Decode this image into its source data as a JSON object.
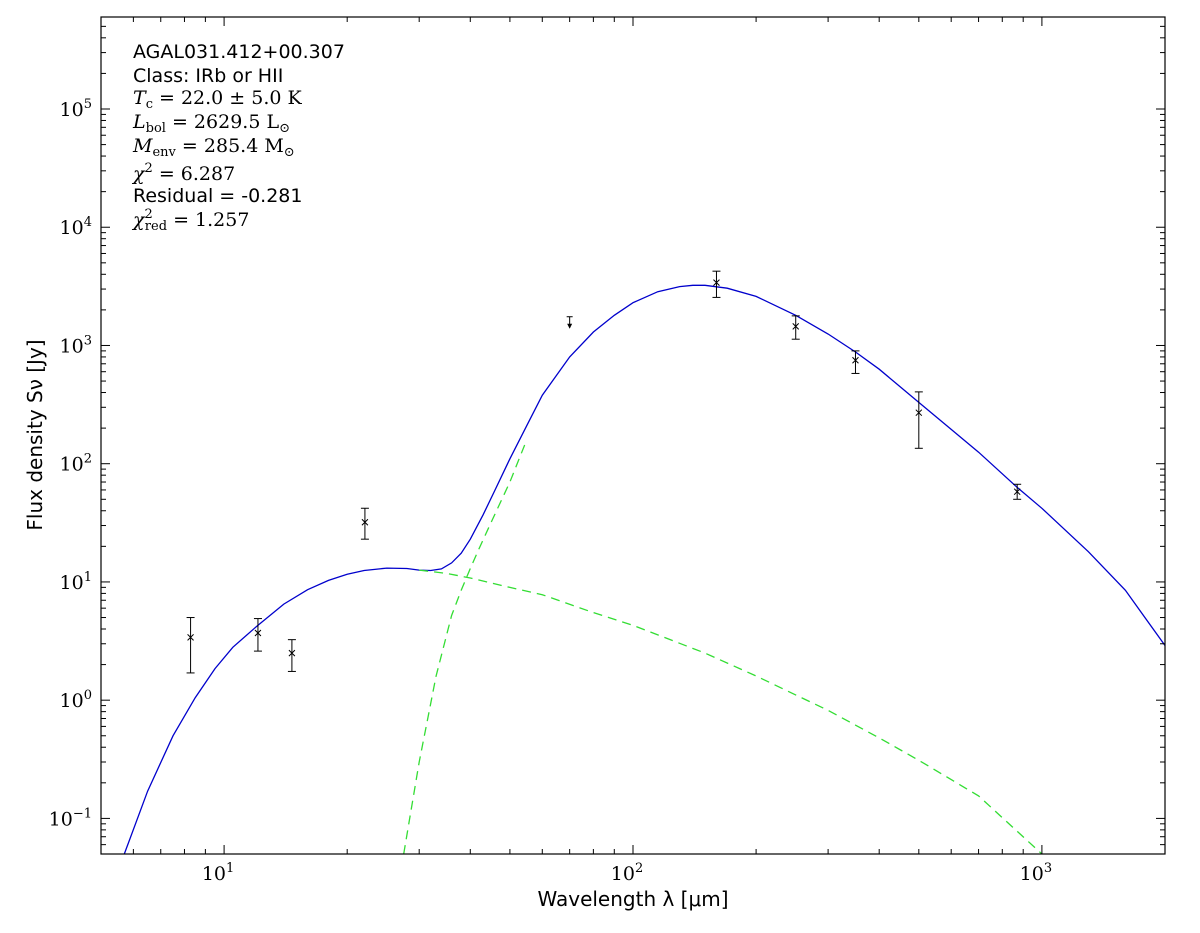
{
  "chart_data": {
    "type": "line",
    "xscale": "log",
    "yscale": "log",
    "xlim": [
      5,
      2000
    ],
    "ylim": [
      0.05,
      600000
    ],
    "xlabel": "Wavelength λ [μm]",
    "ylabel": "Flux density Sν [Jy]",
    "x_tick_labels": [
      {
        "value": 10,
        "base": "10",
        "exp": "1"
      },
      {
        "value": 100,
        "base": "10",
        "exp": "2"
      },
      {
        "value": 1000,
        "base": "10",
        "exp": "3"
      }
    ],
    "y_tick_labels": [
      {
        "value": 0.1,
        "base": "10",
        "exp": "−1"
      },
      {
        "value": 1,
        "base": "10",
        "exp": "0"
      },
      {
        "value": 10,
        "base": "10",
        "exp": "1"
      },
      {
        "value": 100,
        "base": "10",
        "exp": "2"
      },
      {
        "value": 1000,
        "base": "10",
        "exp": "3"
      },
      {
        "value": 10000,
        "base": "10",
        "exp": "4"
      },
      {
        "value": 100000,
        "base": "10",
        "exp": "5"
      }
    ],
    "annotations": {
      "source": "AGAL031.412+00.307",
      "class": "Class: IRb or HII",
      "tc": {
        "sym": "T",
        "sub": "c",
        "text": " = 22.0 ± 5.0 K"
      },
      "lbol": {
        "sym": "L",
        "sub": "bol",
        "text": " = 2629.5 L",
        "suffix_sub": "⊙"
      },
      "menv": {
        "sym": "M",
        "sub": "env",
        "text": " = 285.4 M",
        "suffix_sub": "⊙"
      },
      "chi2": {
        "sym": "χ",
        "sup": "2",
        "text": " = 6.287"
      },
      "residual": "Residual = -0.281",
      "chi2red": {
        "sym": "χ",
        "sup": "2",
        "sub": "red",
        "text": " = 1.257"
      }
    },
    "data_points": [
      {
        "x": 8.28,
        "y": 3.4,
        "err_low": 1.7,
        "err_high": 5.0
      },
      {
        "x": 12.1,
        "y": 3.7,
        "err_low": 2.6,
        "err_high": 4.9
      },
      {
        "x": 14.65,
        "y": 2.5,
        "err_low": 1.75,
        "err_high": 3.25
      },
      {
        "x": 22.1,
        "y": 32,
        "err_low": 23,
        "err_high": 42
      },
      {
        "x": 160,
        "y": 3400,
        "err_low": 2550,
        "err_high": 4250
      },
      {
        "x": 250,
        "y": 1450,
        "err_low": 1130,
        "err_high": 1780
      },
      {
        "x": 350,
        "y": 750,
        "err_low": 580,
        "err_high": 900
      },
      {
        "x": 500,
        "y": 270,
        "err_low": 135,
        "err_high": 405
      },
      {
        "x": 870,
        "y": 58,
        "err_low": 50,
        "err_high": 67
      }
    ],
    "upper_limits": [
      {
        "x": 70,
        "y": 1750
      }
    ],
    "series": [
      {
        "role": "total-model",
        "color": "#0000cc",
        "style": "solid",
        "points": [
          [
            5.7,
            0.05
          ],
          [
            6.5,
            0.17
          ],
          [
            7.5,
            0.5
          ],
          [
            8.5,
            1.05
          ],
          [
            9.5,
            1.85
          ],
          [
            10.5,
            2.8
          ],
          [
            12,
            4.2
          ],
          [
            14,
            6.5
          ],
          [
            16,
            8.6
          ],
          [
            18,
            10.3
          ],
          [
            20,
            11.6
          ],
          [
            22,
            12.5
          ],
          [
            25,
            13.1
          ],
          [
            28,
            13.0
          ],
          [
            30,
            12.6
          ],
          [
            32,
            12.5
          ],
          [
            34,
            12.9
          ],
          [
            36,
            14.5
          ],
          [
            38,
            17.5
          ],
          [
            40,
            23
          ],
          [
            43,
            37
          ],
          [
            46,
            60
          ],
          [
            50,
            110
          ],
          [
            55,
            210
          ],
          [
            60,
            380
          ],
          [
            70,
            800
          ],
          [
            80,
            1300
          ],
          [
            90,
            1800
          ],
          [
            100,
            2300
          ],
          [
            115,
            2850
          ],
          [
            130,
            3150
          ],
          [
            140,
            3230
          ],
          [
            150,
            3230
          ],
          [
            170,
            3050
          ],
          [
            200,
            2600
          ],
          [
            250,
            1800
          ],
          [
            300,
            1250
          ],
          [
            350,
            880
          ],
          [
            400,
            630
          ],
          [
            500,
            330
          ],
          [
            600,
            195
          ],
          [
            700,
            125
          ],
          [
            870,
            63
          ],
          [
            1000,
            42
          ],
          [
            1300,
            18
          ],
          [
            1600,
            8.5
          ],
          [
            2000,
            2.9
          ]
        ]
      },
      {
        "role": "warm-component",
        "color": "#33dd33",
        "style": "dashed",
        "points": [
          [
            30,
            12.6
          ],
          [
            35,
            11.8
          ],
          [
            40,
            10.8
          ],
          [
            50,
            9.0
          ],
          [
            60,
            7.8
          ],
          [
            80,
            5.5
          ],
          [
            100,
            4.3
          ],
          [
            150,
            2.5
          ],
          [
            200,
            1.6
          ],
          [
            300,
            0.82
          ],
          [
            400,
            0.48
          ],
          [
            500,
            0.31
          ],
          [
            700,
            0.155
          ],
          [
            1000,
            0.05
          ]
        ]
      },
      {
        "role": "cold-component",
        "color": "#33dd33",
        "style": "dashed",
        "points": [
          [
            27.5,
            0.05
          ],
          [
            30,
            0.3
          ],
          [
            33,
            1.6
          ],
          [
            36,
            5.2
          ],
          [
            38,
            8.5
          ],
          [
            40,
            13
          ],
          [
            42,
            19
          ],
          [
            45,
            32
          ],
          [
            50,
            70
          ],
          [
            55,
            160
          ]
        ]
      }
    ]
  }
}
